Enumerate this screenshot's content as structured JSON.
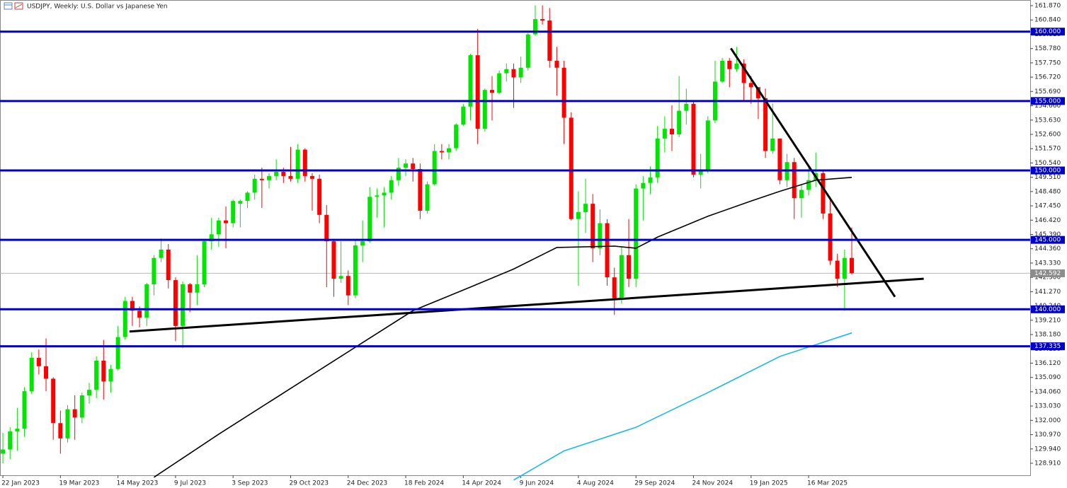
{
  "chart_data": {
    "type": "candlestick",
    "title": "USDJPY, Weekly:  U.S. Dollar vs Japanese Yen",
    "categories": [
      "22 Jan 2023",
      null,
      null,
      null,
      null,
      null,
      null,
      null,
      "19 Mar 2023",
      null,
      null,
      null,
      null,
      null,
      null,
      null,
      "14 May 2023",
      null,
      null,
      null,
      null,
      null,
      null,
      null,
      "9 Jul 2023",
      null,
      null,
      null,
      null,
      null,
      null,
      null,
      "3 Sep 2023",
      null,
      null,
      null,
      null,
      null,
      null,
      null,
      "29 Oct 2023",
      null,
      null,
      null,
      null,
      null,
      null,
      null,
      "24 Dec 2023",
      null,
      null,
      null,
      null,
      null,
      null,
      null,
      "18 Feb 2024",
      null,
      null,
      null,
      null,
      null,
      null,
      null,
      "14 Apr 2024",
      null,
      null,
      null,
      null,
      null,
      null,
      null,
      "9 Jun 2024",
      null,
      null,
      null,
      null,
      null,
      null,
      null,
      "4 Aug 2024",
      null,
      null,
      null,
      null,
      null,
      null,
      null,
      "29 Sep 2024",
      null,
      null,
      null,
      null,
      null,
      null,
      null,
      "24 Nov 2024",
      null,
      null,
      null,
      null,
      null,
      null,
      null,
      "19 Jan 2025",
      null,
      null,
      null,
      null,
      null,
      null,
      null,
      "16 Mar 2025",
      null,
      null,
      null,
      null,
      null,
      null
    ],
    "open": [
      129.6,
      129.9,
      131.2,
      131.4,
      134.1,
      136.5,
      135.9,
      135.0,
      131.8,
      130.7,
      132.8,
      132.2,
      133.8,
      134.2,
      136.3,
      134.8,
      135.7,
      138.0,
      140.6,
      139.9,
      139.4,
      141.8,
      143.7,
      144.3,
      142.1,
      138.8,
      141.8,
      141.2,
      141.8,
      144.9,
      145.4,
      146.4,
      146.2,
      147.6,
      147.8,
      148.4,
      149.4,
      149.3,
      149.6,
      149.9,
      149.6,
      149.4,
      151.5,
      149.6,
      149.4,
      146.8,
      144.9,
      142.2,
      142.4,
      141.0,
      144.6,
      144.9,
      148.1,
      148.2,
      148.4,
      149.3,
      150.2,
      150.5,
      150.1,
      147.1,
      149.0,
      151.4,
      151.3,
      151.6,
      153.3,
      154.6,
      158.3,
      153.0,
      155.8,
      155.6,
      157.0,
      157.3,
      156.7,
      157.4,
      159.8,
      160.9,
      160.8,
      157.9,
      157.4,
      153.8,
      146.5,
      147.0,
      147.6,
      144.4,
      146.2,
      142.3,
      140.8,
      143.9,
      142.2,
      148.7,
      149.1,
      149.5,
      152.3,
      153.0,
      152.6,
      154.3,
      154.8,
      149.7,
      150.0,
      153.6,
      156.4,
      157.9,
      157.3,
      157.7,
      156.3,
      156.0,
      155.2,
      151.4,
      152.3,
      149.3,
      150.6,
      148.0,
      148.6,
      149.3,
      149.8,
      146.9,
      143.5,
      142.2,
      143.7
    ],
    "high": [
      131.1,
      131.5,
      132.9,
      134.4,
      136.9,
      137.1,
      137.9,
      135.1,
      132.7,
      133.1,
      133.8,
      134.0,
      134.7,
      136.6,
      137.8,
      136.0,
      138.8,
      140.9,
      140.9,
      140.2,
      141.9,
      143.9,
      145.1,
      144.7,
      142.3,
      142.0,
      141.9,
      143.9,
      145.0,
      146.6,
      146.6,
      147.4,
      147.9,
      147.9,
      148.5,
      149.7,
      150.2,
      149.8,
      150.8,
      150.2,
      151.7,
      151.9,
      151.6,
      149.8,
      149.7,
      147.5,
      145.0,
      144.9,
      142.8,
      145.0,
      146.4,
      148.8,
      148.7,
      148.8,
      149.6,
      150.9,
      150.8,
      150.9,
      150.5,
      149.2,
      151.9,
      151.9,
      151.9,
      153.4,
      154.8,
      158.4,
      160.2,
      155.9,
      156.8,
      157.2,
      157.7,
      157.7,
      158.2,
      159.9,
      161.9,
      161.9,
      161.7,
      158.9,
      157.9,
      154.2,
      148.5,
      149.4,
      148.3,
      147.2,
      146.5,
      143.0,
      144.5,
      146.5,
      149.0,
      149.6,
      150.3,
      153.2,
      153.9,
      154.7,
      156.8,
      155.9,
      155.0,
      151.2,
      153.9,
      157.9,
      158.1,
      158.1,
      158.9,
      158.0,
      156.8,
      156.0,
      155.9,
      154.8,
      152.3,
      151.2,
      150.9,
      149.0,
      150.2,
      151.3,
      150.0,
      148.1,
      144.0,
      144.3,
      145.9
    ],
    "low": [
      128.9,
      129.2,
      129.8,
      130.8,
      133.9,
      135.3,
      134.1,
      130.6,
      129.6,
      130.4,
      130.6,
      131.8,
      133.2,
      133.6,
      133.5,
      134.0,
      135.6,
      137.8,
      138.8,
      138.7,
      138.8,
      141.0,
      143.4,
      141.5,
      137.7,
      137.2,
      139.8,
      140.3,
      141.6,
      144.3,
      144.5,
      144.4,
      145.9,
      145.9,
      147.3,
      147.9,
      147.3,
      148.7,
      149.3,
      149.1,
      149.2,
      149.1,
      149.2,
      147.1,
      146.2,
      141.6,
      140.9,
      141.9,
      140.3,
      140.8,
      143.4,
      144.8,
      146.6,
      145.9,
      147.9,
      148.9,
      149.6,
      149.2,
      146.5,
      146.9,
      148.9,
      150.8,
      150.8,
      151.4,
      153.2,
      153.6,
      151.9,
      152.8,
      153.6,
      155.5,
      156.4,
      154.5,
      156.3,
      157.2,
      159.7,
      160.5,
      157.4,
      155.4,
      151.9,
      146.4,
      141.7,
      145.5,
      143.4,
      143.9,
      141.7,
      139.6,
      140.4,
      141.6,
      141.6,
      146.4,
      148.3,
      149.1,
      151.3,
      151.4,
      152.4,
      153.3,
      149.5,
      148.7,
      149.8,
      153.4,
      156.3,
      156.0,
      157.1,
      155.0,
      154.8,
      153.7,
      150.9,
      151.2,
      149.0,
      148.8,
      146.5,
      146.6,
      148.2,
      148.8,
      146.5,
      143.2,
      141.6,
      139.9,
      142.5
    ],
    "close": [
      129.9,
      131.2,
      131.4,
      134.1,
      136.5,
      135.9,
      135.0,
      131.8,
      130.7,
      132.8,
      132.2,
      133.8,
      134.2,
      136.3,
      134.8,
      135.7,
      138.0,
      140.6,
      139.9,
      139.4,
      141.8,
      143.7,
      144.3,
      142.1,
      138.8,
      141.8,
      141.2,
      141.8,
      144.9,
      145.4,
      146.4,
      146.2,
      147.8,
      147.8,
      148.4,
      149.4,
      149.3,
      149.6,
      149.9,
      149.6,
      149.4,
      151.5,
      149.6,
      149.4,
      146.8,
      144.9,
      142.2,
      142.4,
      141.0,
      144.6,
      144.9,
      148.1,
      148.2,
      148.4,
      149.3,
      150.2,
      150.5,
      150.1,
      147.1,
      149.0,
      151.4,
      151.3,
      151.6,
      153.3,
      154.6,
      158.3,
      153.0,
      155.8,
      155.6,
      157.0,
      157.3,
      156.7,
      157.4,
      159.8,
      160.9,
      160.8,
      157.9,
      157.4,
      153.8,
      146.5,
      147.0,
      147.6,
      144.4,
      146.2,
      142.3,
      140.8,
      143.9,
      142.2,
      148.7,
      149.1,
      149.5,
      152.3,
      153.0,
      152.6,
      154.3,
      154.8,
      149.7,
      150.0,
      153.6,
      156.4,
      157.9,
      157.3,
      157.7,
      156.3,
      156.0,
      155.2,
      151.4,
      152.3,
      149.3,
      150.6,
      148.0,
      148.6,
      149.3,
      149.8,
      146.9,
      143.5,
      142.2,
      143.7,
      142.6
    ],
    "up_color": "#00e600",
    "down_color": "#ff0000",
    "lines": [
      {
        "color": "#000000",
        "x": [
          21,
          30,
          40,
          50,
          57,
          65,
          71,
          77,
          85,
          88,
          91,
          98,
          104,
          108,
          113,
          118
        ],
        "values": [
          127.9,
          131.0,
          134.3,
          137.6,
          139.9,
          141.6,
          142.9,
          144.45,
          144.55,
          144.4,
          145.2,
          146.7,
          147.8,
          148.5,
          149.3,
          149.5
        ]
      },
      {
        "color": "#1ab8f0",
        "x": [
          71,
          78,
          88,
          98,
          108,
          118
        ],
        "values": [
          127.7,
          129.8,
          131.5,
          134.0,
          136.6,
          138.3
        ]
      },
      {
        "color": "#000000",
        "x": [
          17.6,
          128
        ],
        "values": [
          138.4,
          142.2
        ],
        "width": 3
      },
      {
        "color": "#000000",
        "x": [
          101.2,
          124
        ],
        "values": [
          158.8,
          140.9
        ],
        "width": 3
      }
    ],
    "levels": [
      {
        "value": 160,
        "label": "160.000"
      },
      {
        "value": 155,
        "label": "155.000"
      },
      {
        "value": 150,
        "label": "150.000"
      },
      {
        "value": 145,
        "label": "145.000"
      },
      {
        "value": 140,
        "label": "140.000"
      },
      {
        "value": 137.335,
        "label": "137.335"
      }
    ],
    "level_color": "#0000cc",
    "last_price": {
      "value": 142.592,
      "label": "142.592"
    },
    "xlim": [
      -0.4,
      142.8
    ],
    "ylim": [
      128.044,
      162.278
    ],
    "yticks": [
      {
        "value": 161.87,
        "label": "161.870"
      },
      {
        "value": 160.84,
        "label": "160.840"
      },
      {
        "value": 159.81,
        "label": "159.810"
      },
      {
        "value": 158.78,
        "label": "158.780"
      },
      {
        "value": 157.75,
        "label": "157.750"
      },
      {
        "value": 156.72,
        "label": "156.720"
      },
      {
        "value": 155.69,
        "label": "155.690"
      },
      {
        "value": 154.66,
        "label": "154.660"
      },
      {
        "value": 153.63,
        "label": "153.630"
      },
      {
        "value": 152.6,
        "label": "152.600"
      },
      {
        "value": 151.57,
        "label": "151.570"
      },
      {
        "value": 150.54,
        "label": "150.540"
      },
      {
        "value": 149.51,
        "label": "149.510"
      },
      {
        "value": 148.48,
        "label": "148.480"
      },
      {
        "value": 147.45,
        "label": "147.450"
      },
      {
        "value": 146.42,
        "label": "146.420"
      },
      {
        "value": 145.39,
        "label": "145.390"
      },
      {
        "value": 144.36,
        "label": "144.360"
      },
      {
        "value": 143.33,
        "label": "143.330"
      },
      {
        "value": 142.3,
        "label": "142.300"
      },
      {
        "value": 141.27,
        "label": "141.270"
      },
      {
        "value": 140.24,
        "label": "140.240"
      },
      {
        "value": 139.21,
        "label": "139.210"
      },
      {
        "value": 138.18,
        "label": "138.180"
      },
      {
        "value": 137.15,
        "label": "137.150"
      },
      {
        "value": 136.12,
        "label": "136.120"
      },
      {
        "value": 135.09,
        "label": "135.090"
      },
      {
        "value": 134.06,
        "label": "134.060"
      },
      {
        "value": 133.03,
        "label": "133.030"
      },
      {
        "value": 132,
        "label": "132.000"
      },
      {
        "value": 130.97,
        "label": "130.970"
      },
      {
        "value": 129.94,
        "label": "129.940"
      },
      {
        "value": 128.91,
        "label": "128.910"
      }
    ],
    "grid": false
  }
}
